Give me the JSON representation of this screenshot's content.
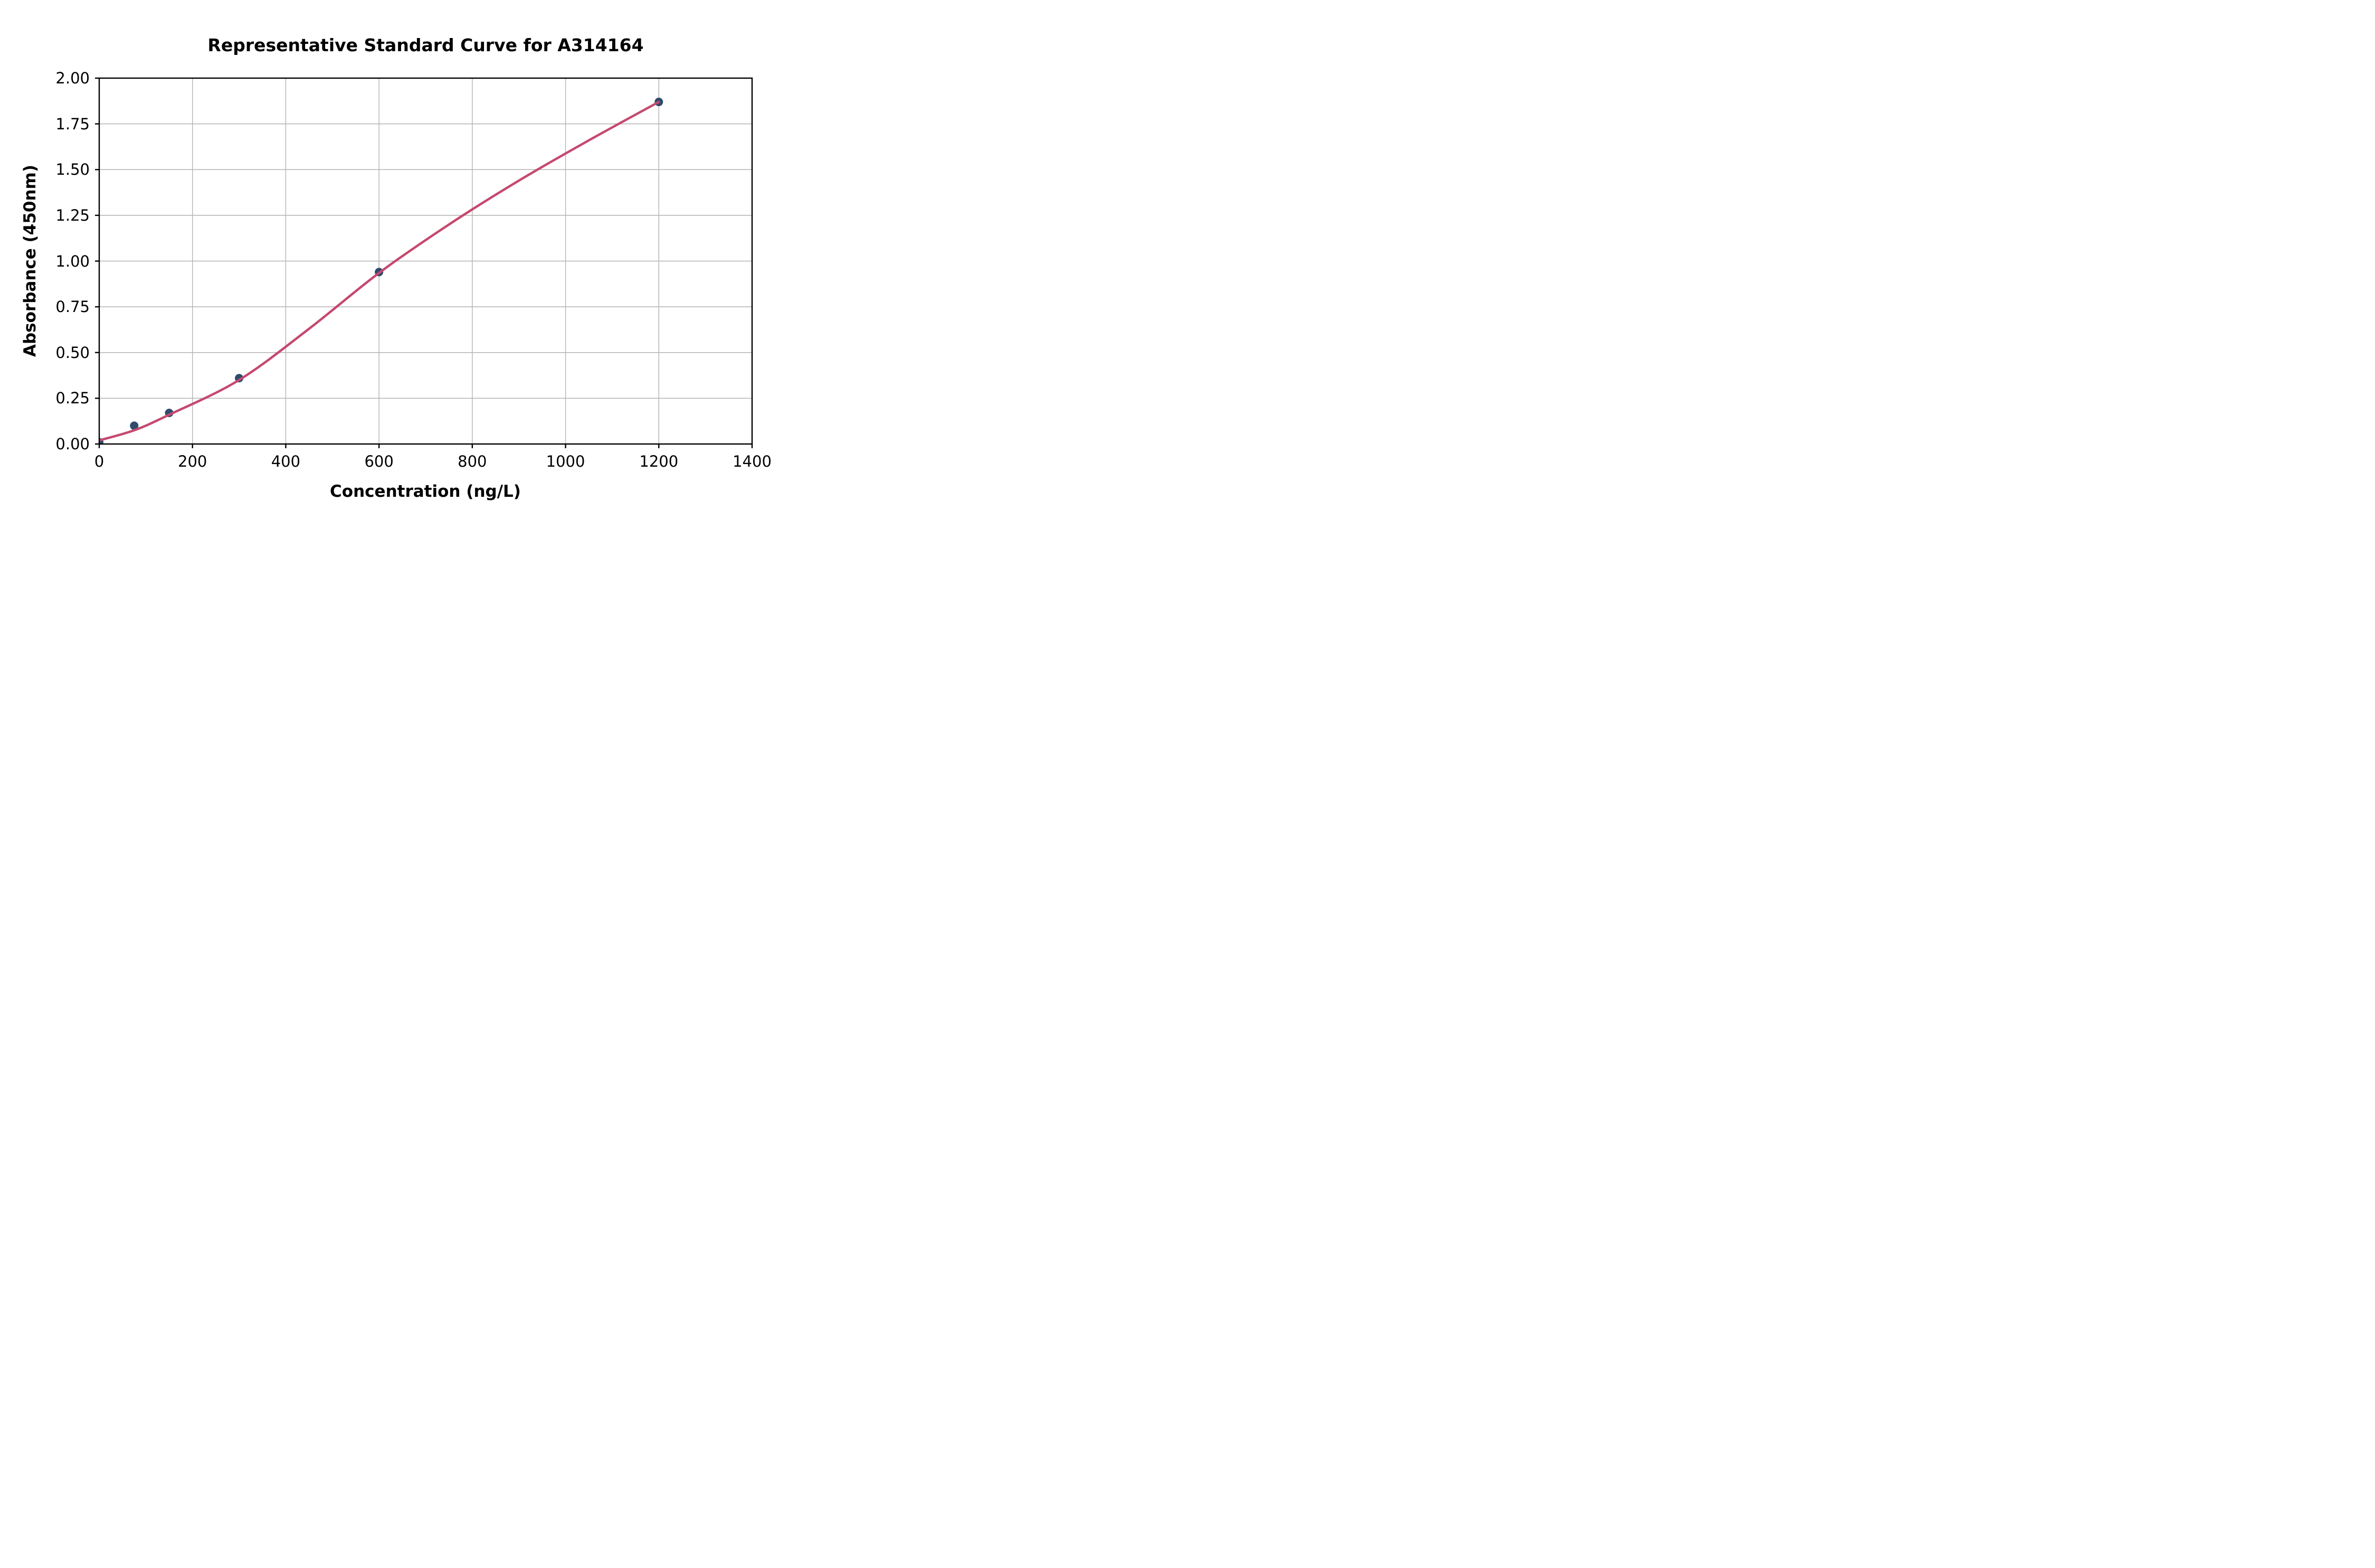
{
  "figure": {
    "title": "Representative Standard Curve for A314164",
    "xlabel": "Concentration (ng/L)",
    "ylabel": "Absorbance (450nm)"
  },
  "chart_data": {
    "type": "scatter",
    "title": "Representative Standard Curve for A314164",
    "xlabel": "Concentration (ng/L)",
    "ylabel": "Absorbance (450nm)",
    "xlim": [
      0,
      1400
    ],
    "ylim": [
      0,
      2.0
    ],
    "grid": true,
    "legend_position": "none",
    "x_ticks": {
      "values": [
        0,
        200,
        400,
        600,
        800,
        1000,
        1200,
        1400
      ],
      "labels": [
        "0",
        "200",
        "400",
        "600",
        "800",
        "1000",
        "1200",
        "1400"
      ]
    },
    "y_ticks": {
      "values": [
        0,
        0.25,
        0.5,
        0.75,
        1.0,
        1.25,
        1.5,
        1.75,
        2.0
      ],
      "labels": [
        "0.00",
        "0.25",
        "0.50",
        "0.75",
        "1.00",
        "1.25",
        "1.50",
        "1.75",
        "2.00"
      ]
    },
    "series": [
      {
        "name": "standard-points",
        "kind": "scatter",
        "color": "#2e4c6b",
        "marker_radius_px": 8,
        "x": [
          0,
          75,
          150,
          300,
          600,
          1200
        ],
        "y": [
          0.01,
          0.1,
          0.17,
          0.36,
          0.94,
          1.87
        ]
      },
      {
        "name": "fitted-curve",
        "kind": "line",
        "color": "#c5496f",
        "stroke_width_px": 4.5,
        "x": [
          0,
          75,
          150,
          300,
          450,
          600,
          750,
          900,
          1050,
          1200
        ],
        "y": [
          0.02,
          0.075,
          0.16,
          0.35,
          0.63,
          0.935,
          1.2,
          1.44,
          1.66,
          1.87
        ]
      }
    ],
    "colors": {
      "grid": "#b3b3b3",
      "frame": "#000000",
      "tick": "#000000",
      "background": "#ffffff"
    }
  }
}
